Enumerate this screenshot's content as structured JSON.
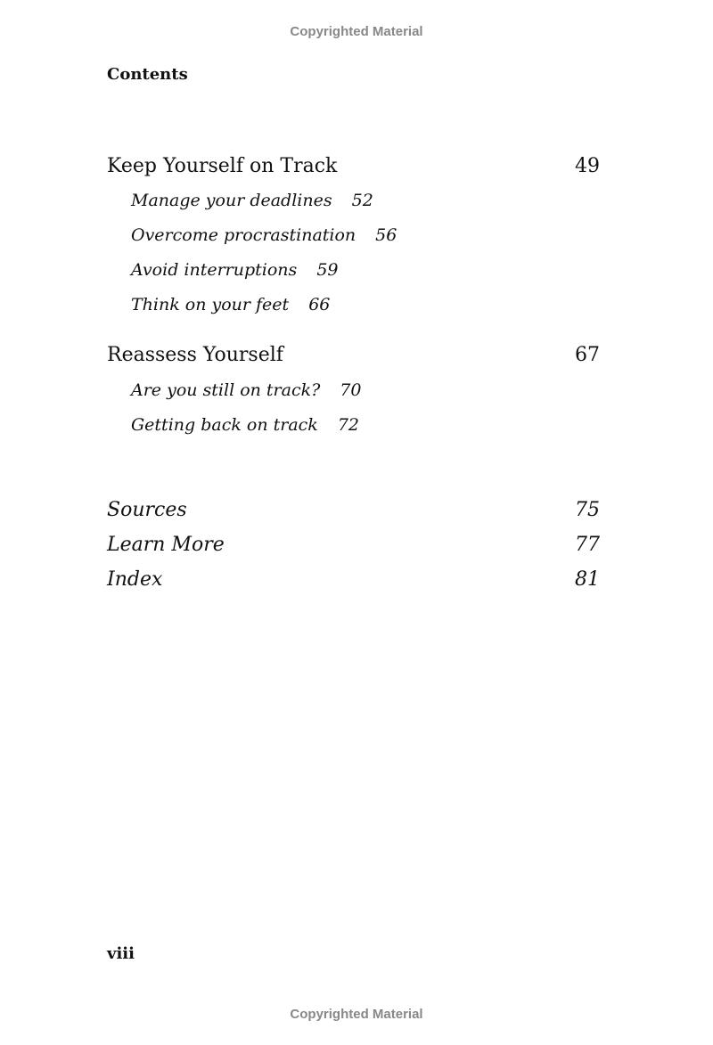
{
  "watermark": "Copyrighted Material",
  "heading": "Contents",
  "sections": [
    {
      "title": "Keep Yourself on Track",
      "page": "49",
      "items": [
        {
          "title": "Manage your deadlines",
          "page": "52"
        },
        {
          "title": "Overcome procrastination",
          "page": "56"
        },
        {
          "title": "Avoid interruptions",
          "page": "59"
        },
        {
          "title": "Think on your feet",
          "page": "66"
        }
      ]
    },
    {
      "title": "Reassess Yourself",
      "page": "67",
      "items": [
        {
          "title": "Are you still on track?",
          "page": "70"
        },
        {
          "title": "Getting back on track",
          "page": "72"
        }
      ]
    }
  ],
  "back_matter": [
    {
      "title": "Sources",
      "page": "75"
    },
    {
      "title": "Learn More",
      "page": "77"
    },
    {
      "title": "Index",
      "page": "81"
    }
  ],
  "folio": "viii"
}
